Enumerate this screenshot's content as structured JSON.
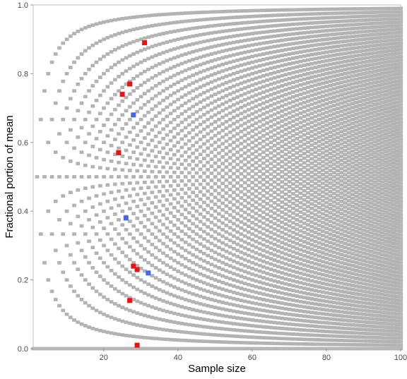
{
  "chart_data": {
    "type": "scatter",
    "title": "",
    "xlabel": "Sample size",
    "ylabel": "Fractional portion of mean",
    "xlim": [
      1,
      100
    ],
    "ylim": [
      0,
      1
    ],
    "x_ticks": [
      20,
      40,
      60,
      80,
      100
    ],
    "y_ticks": [
      0.0,
      0.2,
      0.4,
      0.6,
      0.8,
      1.0
    ],
    "x_tick_labels": [
      "20",
      "40",
      "60",
      "80",
      "100"
    ],
    "y_tick_labels": [
      "0.0",
      "0.2",
      "0.4",
      "0.6",
      "0.8",
      "1.0"
    ],
    "background_pattern": {
      "description": "achievable fractional parts k/n for each sample size n = 1..100",
      "n_min": 1,
      "n_max": 100,
      "color": "#b3b3b3"
    },
    "series": [
      {
        "color": "#ee1111",
        "points": [
          {
            "x": 31,
            "y": 0.89
          },
          {
            "x": 27,
            "y": 0.77
          },
          {
            "x": 25,
            "y": 0.74
          },
          {
            "x": 24,
            "y": 0.57
          },
          {
            "x": 28,
            "y": 0.24
          },
          {
            "x": 29,
            "y": 0.23
          },
          {
            "x": 27,
            "y": 0.14
          },
          {
            "x": 29,
            "y": 0.01
          }
        ]
      },
      {
        "color": "#4466ee",
        "points": [
          {
            "x": 28,
            "y": 0.68
          },
          {
            "x": 26,
            "y": 0.38
          },
          {
            "x": 32,
            "y": 0.22
          }
        ]
      }
    ],
    "grid": false,
    "legend": "none"
  }
}
